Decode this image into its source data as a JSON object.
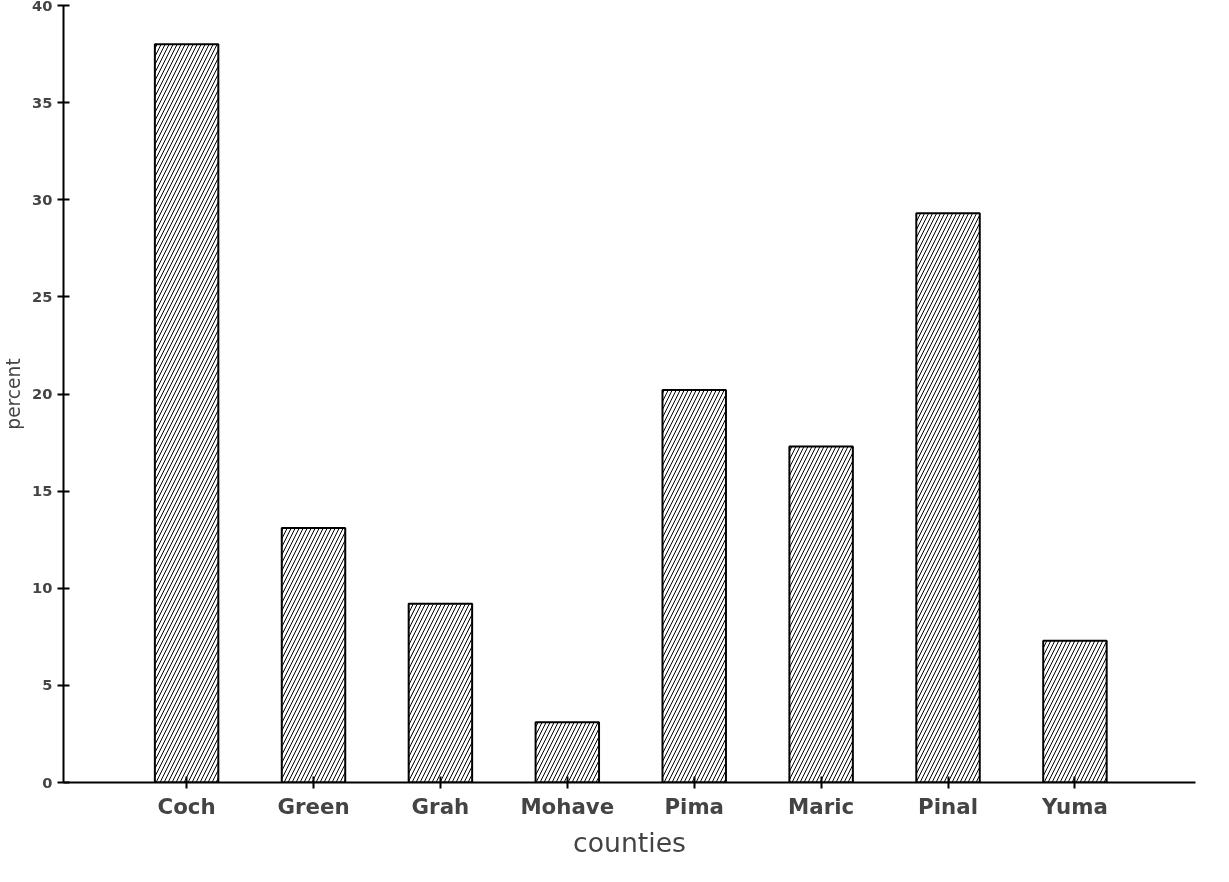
{
  "chart_data": {
    "type": "bar",
    "xlabel": "counties",
    "ylabel": "percent",
    "categories": [
      "Coch",
      "Green",
      "Grah",
      "Mohave",
      "Pima",
      "Maric",
      "Pinal",
      "Yuma"
    ],
    "values": [
      38.0,
      13.1,
      9.2,
      3.1,
      20.2,
      17.3,
      29.3,
      7.3
    ],
    "color": "#000000",
    "ylim": [
      0,
      40
    ],
    "yticks": [
      0,
      5,
      10,
      15,
      20,
      25,
      30,
      35,
      40
    ],
    "grid": false
  }
}
